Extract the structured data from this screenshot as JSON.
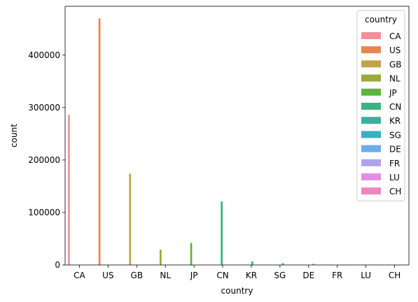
{
  "chart_data": {
    "type": "bar",
    "xlabel": "country",
    "ylabel": "count",
    "ylim": [
      0,
      493000
    ],
    "yticks": [
      0,
      100000,
      200000,
      300000,
      400000
    ],
    "ytick_labels": [
      "0",
      "100000",
      "200000",
      "300000",
      "400000"
    ],
    "categories": [
      "CA",
      "US",
      "GB",
      "NL",
      "JP",
      "CN",
      "KR",
      "SG",
      "DE",
      "FR",
      "LU",
      "CH"
    ],
    "legend": {
      "title": "country",
      "position": "top-right"
    },
    "series": [
      {
        "name": "CA",
        "color": "#f0909a",
        "values": [
          286000,
          0,
          0,
          0,
          0,
          0,
          0,
          0,
          0,
          0,
          0,
          0
        ]
      },
      {
        "name": "US",
        "color": "#e0894f",
        "values": [
          0,
          470000,
          0,
          0,
          0,
          0,
          0,
          0,
          0,
          0,
          0,
          0
        ]
      },
      {
        "name": "GB",
        "color": "#c4a24a",
        "values": [
          0,
          0,
          174000,
          0,
          0,
          0,
          0,
          0,
          0,
          0,
          0,
          0
        ]
      },
      {
        "name": "NL",
        "color": "#9ba83c",
        "values": [
          0,
          0,
          0,
          29000,
          0,
          0,
          0,
          0,
          0,
          0,
          0,
          0
        ]
      },
      {
        "name": "JP",
        "color": "#5cb541",
        "values": [
          0,
          0,
          0,
          0,
          42000,
          0,
          0,
          0,
          0,
          0,
          0,
          0
        ]
      },
      {
        "name": "CN",
        "color": "#3bb380",
        "values": [
          0,
          0,
          0,
          0,
          0,
          121000,
          0,
          0,
          0,
          0,
          0,
          0
        ]
      },
      {
        "name": "KR",
        "color": "#3bb0a0",
        "values": [
          0,
          0,
          0,
          0,
          0,
          0,
          7000,
          0,
          0,
          0,
          0,
          0
        ]
      },
      {
        "name": "SG",
        "color": "#3caec0",
        "values": [
          0,
          0,
          0,
          0,
          0,
          0,
          0,
          3500,
          0,
          0,
          0,
          0
        ]
      },
      {
        "name": "DE",
        "color": "#6aade8",
        "values": [
          0,
          0,
          0,
          0,
          0,
          0,
          0,
          0,
          2500,
          0,
          0,
          0
        ]
      },
      {
        "name": "FR",
        "color": "#b0a3ea",
        "values": [
          0,
          0,
          0,
          0,
          0,
          0,
          0,
          0,
          0,
          800,
          0,
          0
        ]
      },
      {
        "name": "LU",
        "color": "#e38ee8",
        "values": [
          0,
          0,
          0,
          0,
          0,
          0,
          0,
          0,
          0,
          0,
          500,
          0
        ]
      },
      {
        "name": "CH",
        "color": "#ec87c0",
        "values": [
          0,
          0,
          0,
          0,
          0,
          0,
          0,
          0,
          0,
          0,
          0,
          300
        ]
      }
    ]
  }
}
